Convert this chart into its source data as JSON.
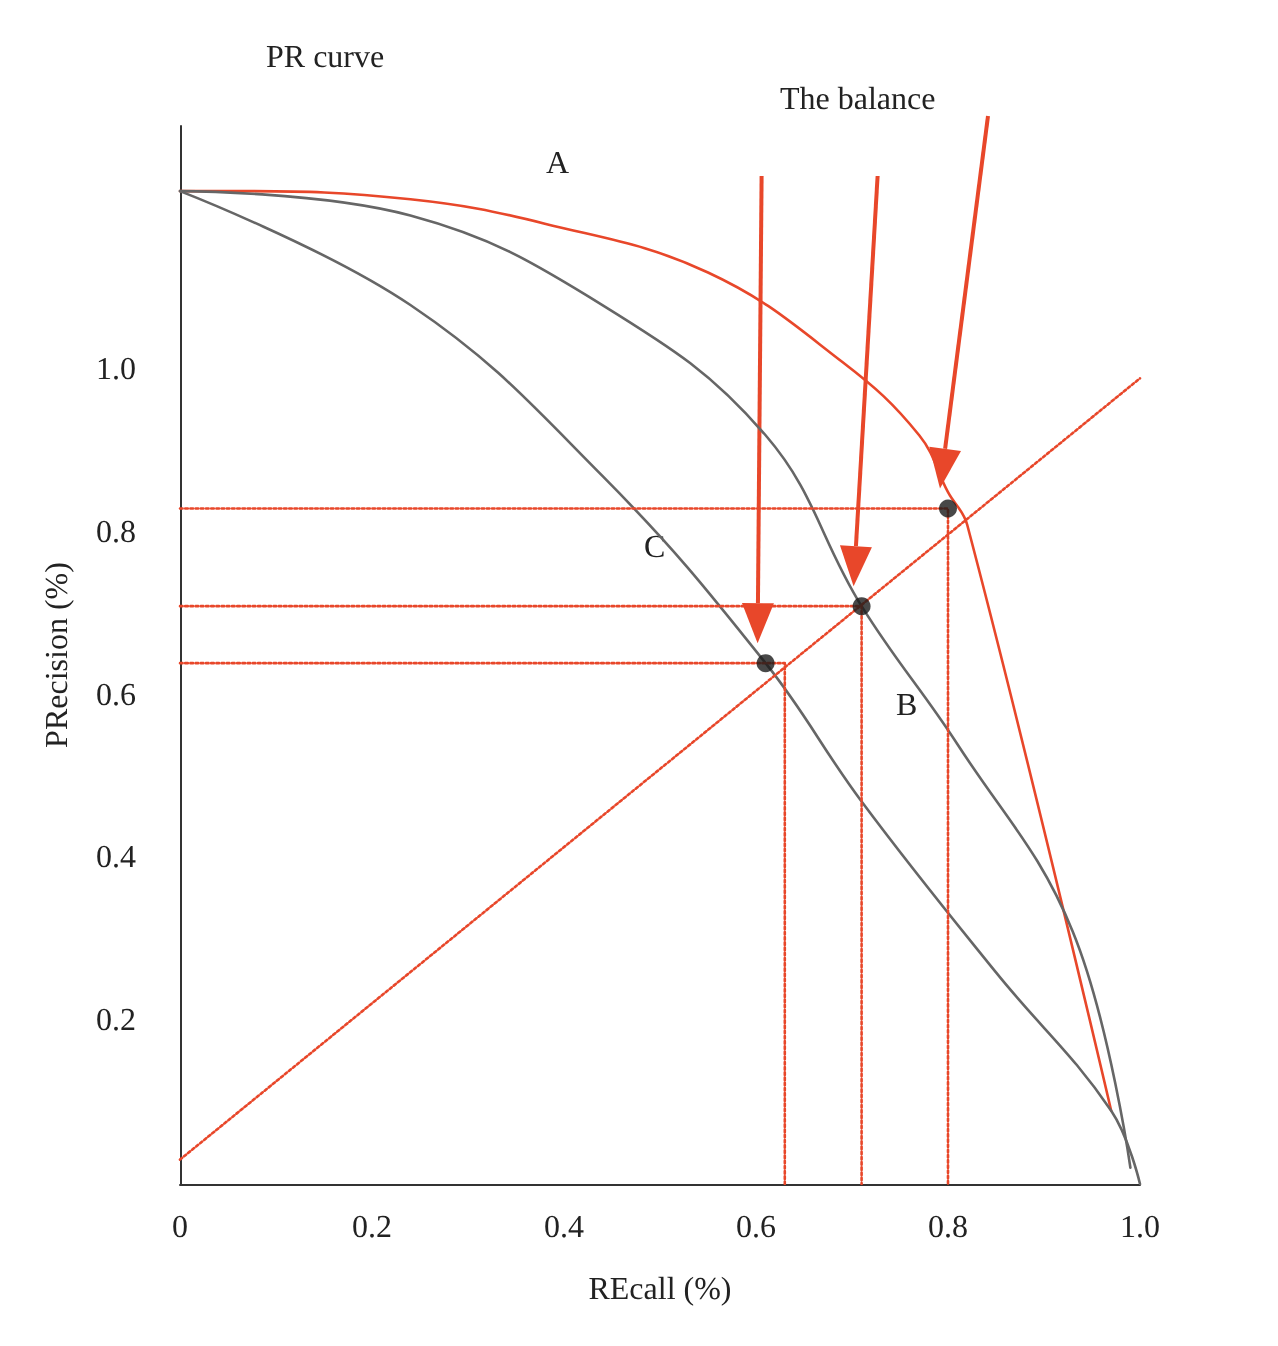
{
  "chart_data": {
    "type": "line",
    "title": "PR curve",
    "xlabel": "REcall (%)",
    "ylabel": "PRecision (%)",
    "xlim": [
      0,
      1.0
    ],
    "ylim": [
      0,
      1.3
    ],
    "xticks": [
      0,
      0.2,
      0.4,
      0.6,
      0.8,
      {
        "value": 1,
        "label": "1.0"
      }
    ],
    "yticks": [
      0.2,
      0.4,
      0.6,
      0.8,
      {
        "value": 1,
        "label": "1.0"
      }
    ],
    "grid": false,
    "annotations": [
      "The balance",
      "A",
      "B",
      "C"
    ],
    "series": [
      {
        "color": "#e8472a",
        "marker": "none",
        "line_style": "solid",
        "x": [
          0,
          0.06,
          0.24,
          0.38,
          0.55,
          0.69,
          0.77,
          0.8,
          0.82,
          0.97
        ],
        "values": [
          1.22,
          1.22,
          1.21,
          1.18,
          1.12,
          1.01,
          0.92,
          0.85,
          0.81,
          0.09
        ]
      },
      {
        "color": "#666666",
        "marker": "none",
        "line_style": "solid",
        "x": [
          0,
          0.24,
          0.44,
          0.61,
          0.71,
          0.81,
          0.93,
          0.99
        ],
        "values": [
          1.22,
          1.19,
          1.08,
          0.92,
          0.71,
          0.54,
          0.31,
          0.02
        ]
      },
      {
        "color": "#666666",
        "marker": "none",
        "line_style": "solid",
        "x": [
          0,
          0.24,
          0.44,
          0.61,
          0.71,
          0.85,
          0.97,
          1.0
        ],
        "values": [
          1.22,
          1.08,
          0.87,
          0.64,
          0.47,
          0.26,
          0.09,
          0
        ]
      },
      {
        "color": "#e8472a",
        "marker": "none",
        "line_style": "dotted",
        "x": [
          0,
          1.0
        ],
        "values": [
          0.03,
          0.99
        ]
      },
      {
        "color": "#e8472a",
        "marker": "none",
        "line_style": "dotted",
        "x": [
          0,
          0.8,
          0.8
        ],
        "values": [
          0.83,
          0.83,
          0
        ]
      },
      {
        "color": "#e8472a",
        "marker": "none",
        "line_style": "dotted",
        "x": [
          0,
          0.71,
          0.71
        ],
        "values": [
          0.71,
          0.71,
          0
        ]
      },
      {
        "color": "#e8472a",
        "marker": "none",
        "line_style": "dotted",
        "x": [
          0,
          0.63,
          0.63
        ],
        "values": [
          0.64,
          0.64,
          0
        ]
      },
      {
        "type": "scatter",
        "color": "#1a1a1a",
        "marker": "circle",
        "x": [
          0.8,
          0.71,
          0.61
        ],
        "values": [
          0.83,
          0.71,
          0.64
        ]
      }
    ]
  }
}
